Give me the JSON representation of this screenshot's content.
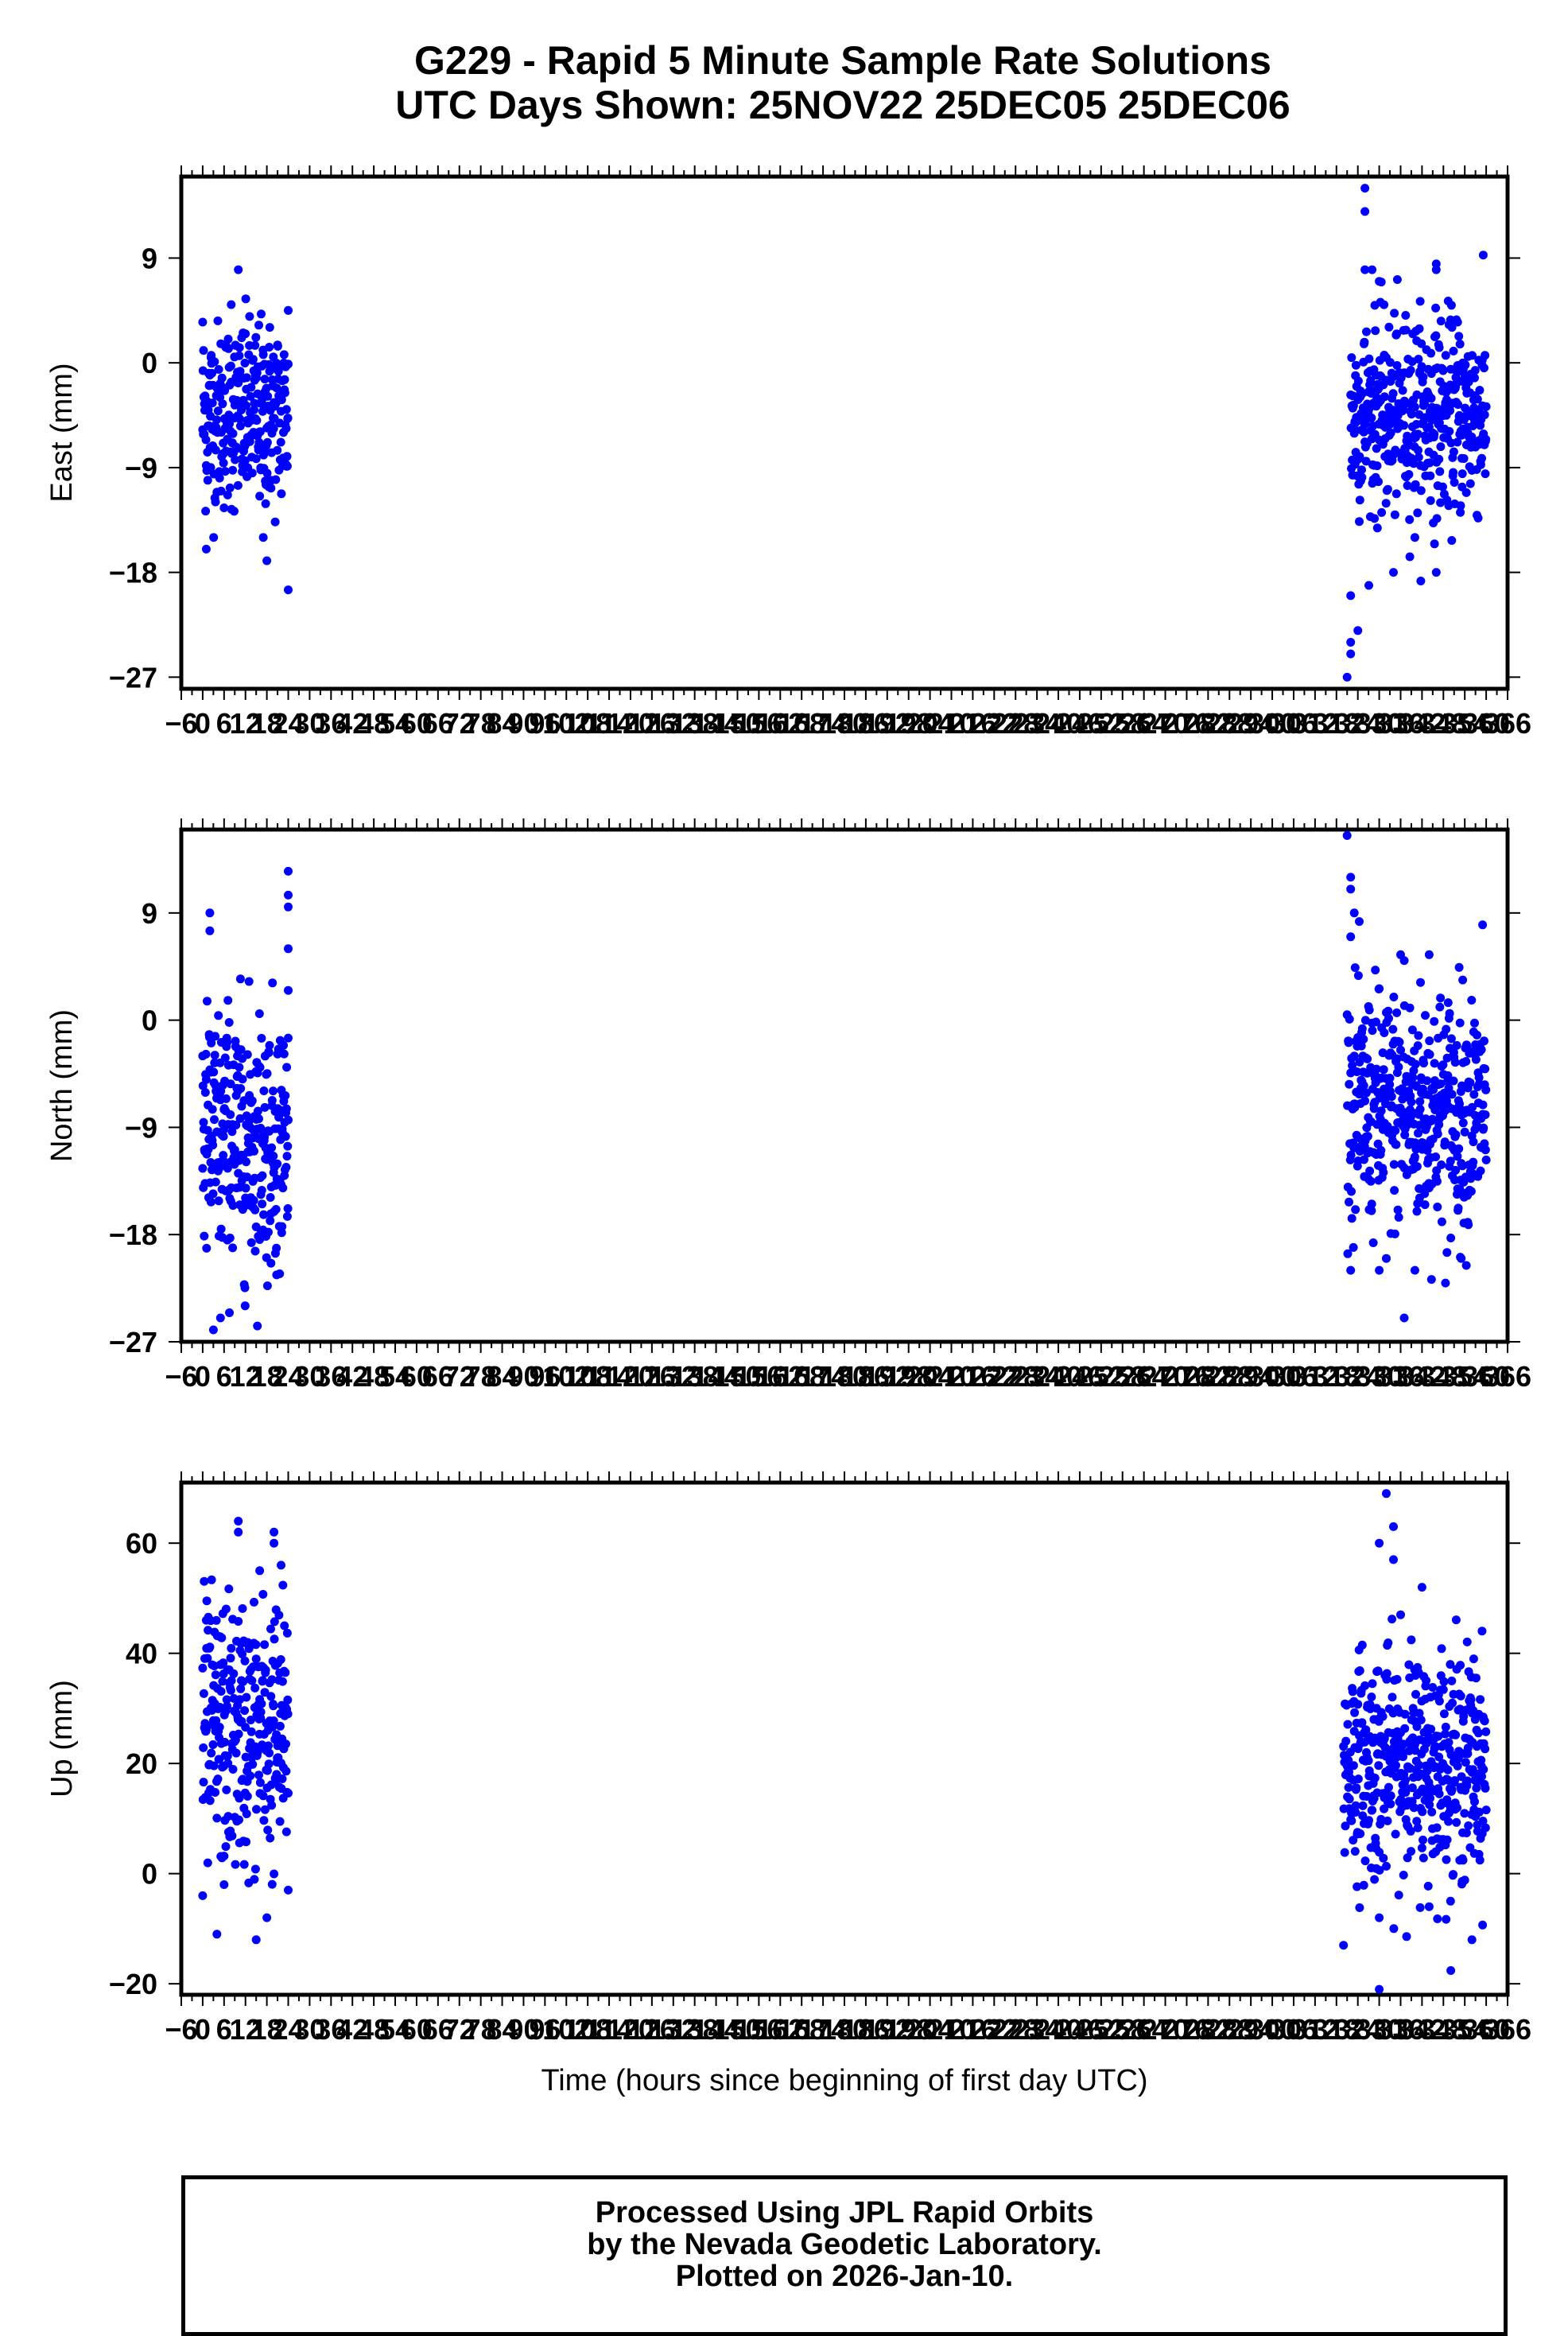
{
  "title": {
    "line1": "G229 - Rapid 5 Minute Sample Rate Solutions",
    "line2": "UTC Days Shown:  25NOV22 25DEC05 25DEC06"
  },
  "footer": {
    "line1": "Processed Using JPL Rapid Orbits",
    "line2": "by the Nevada Geodetic Laboratory.",
    "line3": "Plotted on 2026-Jan-10."
  },
  "colors": {
    "points": "#0000ff",
    "axes": "#000000",
    "background": "#ffffff"
  },
  "chart_data": [
    {
      "type": "scatter",
      "name": "east",
      "ylabel": "East (mm)",
      "xlabel": "",
      "ylim": [
        -28,
        16
      ],
      "xlim": [
        -6,
        366
      ],
      "yticks": [
        -27,
        -18,
        -9,
        0,
        9
      ],
      "ytick_labels": [
        "−27",
        "−18",
        "−9",
        "0",
        "9"
      ],
      "xtick_labels": [
        "−6",
        "0",
        "6",
        "12",
        "18",
        "24",
        "30",
        "36",
        "42",
        "48",
        "54",
        "60",
        "66",
        "72",
        "78",
        "84",
        "90",
        "96",
        "102",
        "108",
        "114",
        "120",
        "126",
        "132",
        "138",
        "144",
        "150",
        "156",
        "162",
        "168",
        "174",
        "180",
        "186",
        "192",
        "198",
        "204",
        "210",
        "216",
        "222",
        "228",
        "234",
        "240",
        "246",
        "252",
        "258",
        "264",
        "270",
        "276",
        "282",
        "288",
        "294",
        "300",
        "306",
        "312",
        "318",
        "324",
        "330",
        "336",
        "342",
        "348",
        "354",
        "360",
        "366"
      ],
      "segments": [
        {
          "x_start": 0,
          "x_end": 24,
          "center": -4.5,
          "spread": 4.0,
          "extremes": [
            [
              0,
              3.5
            ],
            [
              10,
              8.0
            ],
            [
              8,
              5.0
            ],
            [
              24,
              4.5
            ],
            [
              18,
              -17
            ],
            [
              17,
              -15
            ],
            [
              1,
              -16
            ],
            [
              24,
              -19.5
            ],
            [
              12,
              2.5
            ]
          ]
        },
        {
          "x_start": 322,
          "x_end": 360,
          "center": -4.5,
          "spread": 4.2,
          "extremes": [
            [
              326,
              15
            ],
            [
              326,
              13
            ],
            [
              326,
              8
            ],
            [
              328,
              8
            ],
            [
              330,
              7
            ],
            [
              346,
              8.5
            ],
            [
              346,
              8
            ],
            [
              322,
              -24
            ],
            [
              322,
              -25
            ],
            [
              321,
              -27
            ],
            [
              324,
              -23
            ],
            [
              322,
              -20
            ],
            [
              334,
              -18
            ],
            [
              346,
              -18
            ],
            [
              340,
              -15
            ],
            [
              352,
              3.5
            ]
          ]
        }
      ]
    },
    {
      "type": "scatter",
      "name": "north",
      "ylabel": "North (mm)",
      "xlabel": "",
      "ylim": [
        -27,
        16
      ],
      "xlim": [
        -6,
        366
      ],
      "yticks": [
        -27,
        -18,
        -9,
        0,
        9
      ],
      "ytick_labels": [
        "−27",
        "−18",
        "−9",
        "0",
        "9"
      ],
      "xtick_labels": [
        "−6",
        "0",
        "6",
        "12",
        "18",
        "24",
        "30",
        "36",
        "42",
        "48",
        "54",
        "60",
        "66",
        "72",
        "78",
        "84",
        "90",
        "96",
        "102",
        "108",
        "114",
        "120",
        "126",
        "132",
        "138",
        "144",
        "150",
        "156",
        "162",
        "168",
        "174",
        "180",
        "186",
        "192",
        "198",
        "204",
        "210",
        "216",
        "222",
        "228",
        "234",
        "240",
        "246",
        "252",
        "258",
        "264",
        "270",
        "276",
        "282",
        "288",
        "294",
        "300",
        "306",
        "312",
        "318",
        "324",
        "330",
        "336",
        "342",
        "348",
        "354",
        "360",
        "366"
      ],
      "segments": [
        {
          "x_start": 0,
          "x_end": 24,
          "center": -10,
          "spread": 5.5,
          "extremes": [
            [
              2,
              9.0
            ],
            [
              2,
              7.5
            ],
            [
              24,
              12.5
            ],
            [
              24,
              10.5
            ],
            [
              24,
              9.5
            ],
            [
              24,
              6.0
            ],
            [
              3,
              -26
            ],
            [
              5,
              -25
            ],
            [
              24,
              2.5
            ],
            [
              24,
              -1.5
            ],
            [
              0,
              -3
            ]
          ]
        },
        {
          "x_start": 321,
          "x_end": 360,
          "center": -7.5,
          "spread": 5.0,
          "extremes": [
            [
              321,
              15.5
            ],
            [
              322,
              12
            ],
            [
              322,
              11
            ],
            [
              323,
              9
            ],
            [
              322,
              7
            ],
            [
              336,
              5.5
            ],
            [
              337,
              5
            ],
            [
              344,
              5.5
            ],
            [
              359,
              8
            ],
            [
              322,
              -21
            ],
            [
              330,
              -21
            ],
            [
              332,
              -20
            ],
            [
              337,
              -25
            ],
            [
              340,
              -21
            ],
            [
              349,
              -19.5
            ],
            [
              353,
              -20
            ]
          ]
        }
      ]
    },
    {
      "type": "scatter",
      "name": "up",
      "ylabel": "Up (mm)",
      "xlabel": "Time (hours since beginning of first day UTC)",
      "ylim": [
        -22,
        71
      ],
      "xlim": [
        -6,
        366
      ],
      "yticks": [
        -20,
        0,
        20,
        40,
        60
      ],
      "ytick_labels": [
        "−20",
        "0",
        "20",
        "40",
        "60"
      ],
      "xtick_labels": [
        "−6",
        "0",
        "6",
        "12",
        "18",
        "24",
        "30",
        "36",
        "42",
        "48",
        "54",
        "60",
        "66",
        "72",
        "78",
        "84",
        "90",
        "96",
        "102",
        "108",
        "114",
        "120",
        "126",
        "132",
        "138",
        "144",
        "150",
        "156",
        "162",
        "168",
        "174",
        "180",
        "186",
        "192",
        "198",
        "204",
        "210",
        "216",
        "222",
        "228",
        "234",
        "240",
        "246",
        "252",
        "258",
        "264",
        "270",
        "276",
        "282",
        "288",
        "294",
        "300",
        "306",
        "312",
        "318",
        "324",
        "330",
        "336",
        "342",
        "348",
        "354",
        "360",
        "366"
      ],
      "segments": [
        {
          "x_start": 0,
          "x_end": 24,
          "center": 25,
          "spread": 12,
          "extremes": [
            [
              10,
              64
            ],
            [
              10,
              62
            ],
            [
              20,
              62
            ],
            [
              20,
              60
            ],
            [
              16,
              55
            ],
            [
              22,
              56
            ],
            [
              4,
              -11
            ],
            [
              6,
              -2
            ],
            [
              15,
              -12
            ],
            [
              18,
              -8
            ],
            [
              0,
              -4
            ],
            [
              24,
              -3
            ],
            [
              1,
              46
            ]
          ]
        },
        {
          "x_start": 320,
          "x_end": 360,
          "center": 20,
          "spread": 10,
          "extremes": [
            [
              332,
              69
            ],
            [
              334,
              63
            ],
            [
              330,
              60
            ],
            [
              334,
              57
            ],
            [
              342,
              52
            ],
            [
              320,
              -13
            ],
            [
              330,
              -21
            ],
            [
              356,
              -12
            ],
            [
              330,
              -8
            ],
            [
              344,
              -6
            ],
            [
              350,
              -5
            ],
            [
              336,
              47
            ]
          ]
        }
      ]
    }
  ]
}
